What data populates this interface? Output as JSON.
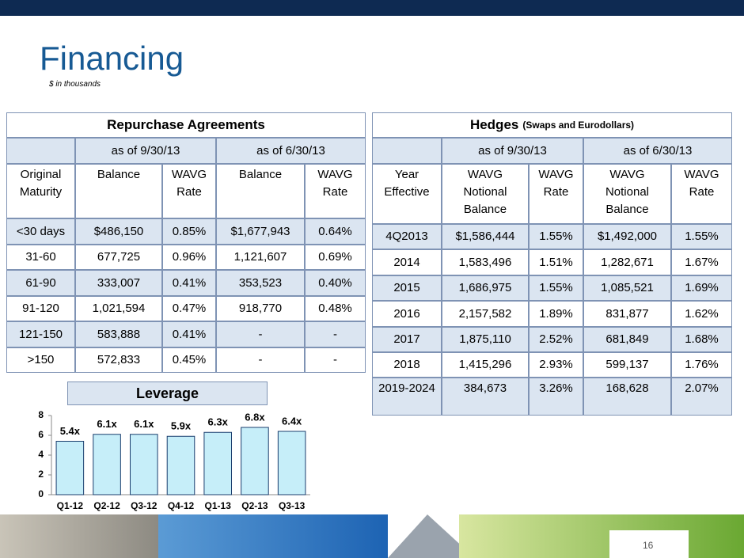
{
  "title": "Financing",
  "subtitle": "$ in thousands",
  "page_number": "16",
  "repo": {
    "title": "Repurchase Agreements",
    "periods": [
      "as of 9/30/13",
      "as of 6/30/13"
    ],
    "columns": [
      "Original Maturity",
      "Balance",
      "WAVG Rate",
      "Balance",
      "WAVG Rate"
    ],
    "rows": [
      [
        "<30 days",
        "$486,150",
        "0.85%",
        "$1,677,943",
        "0.64%"
      ],
      [
        "31-60",
        "677,725",
        "0.96%",
        "1,121,607",
        "0.69%"
      ],
      [
        "61-90",
        "333,007",
        "0.41%",
        "353,523",
        "0.40%"
      ],
      [
        "91-120",
        "1,021,594",
        "0.47%",
        "918,770",
        "0.48%"
      ],
      [
        "121-150",
        "583,888",
        "0.41%",
        "-",
        "-"
      ],
      [
        ">150",
        "572,833",
        "0.45%",
        "-",
        "-"
      ]
    ]
  },
  "hedges": {
    "title": "Hedges",
    "title_note": "(Swaps and Eurodollars)",
    "periods": [
      "as of 9/30/13",
      "as of 6/30/13"
    ],
    "columns": [
      "Year Effective",
      "WAVG Notional Balance",
      "WAVG Rate",
      "WAVG Notional Balance",
      "WAVG Rate"
    ],
    "rows": [
      [
        "4Q2013",
        "$1,586,444",
        "1.55%",
        "$1,492,000",
        "1.55%"
      ],
      [
        "2014",
        "1,583,496",
        "1.51%",
        "1,282,671",
        "1.67%"
      ],
      [
        "2015",
        "1,686,975",
        "1.55%",
        "1,085,521",
        "1.69%"
      ],
      [
        "2016",
        "2,157,582",
        "1.89%",
        "831,877",
        "1.62%"
      ],
      [
        "2017",
        "1,875,110",
        "2.52%",
        "681,849",
        "1.68%"
      ],
      [
        "2018",
        "1,415,296",
        "2.93%",
        "599,137",
        "1.76%"
      ],
      [
        "2019-2024",
        "384,673",
        "3.26%",
        "168,628",
        "2.07%"
      ]
    ]
  },
  "chart_data": {
    "type": "bar",
    "title": "Leverage",
    "categories": [
      "Q1-12",
      "Q2-12",
      "Q3-12",
      "Q4-12",
      "Q1-13",
      "Q2-13",
      "Q3-13"
    ],
    "values": [
      5.4,
      6.1,
      6.1,
      5.9,
      6.3,
      6.8,
      6.4
    ],
    "value_labels": [
      "5.4x",
      "6.1x",
      "6.1x",
      "5.9x",
      "6.3x",
      "6.8x",
      "6.4x"
    ],
    "ylim": [
      0,
      8
    ],
    "yticks": [
      0,
      2,
      4,
      6,
      8
    ],
    "color": "#c6eef9"
  }
}
